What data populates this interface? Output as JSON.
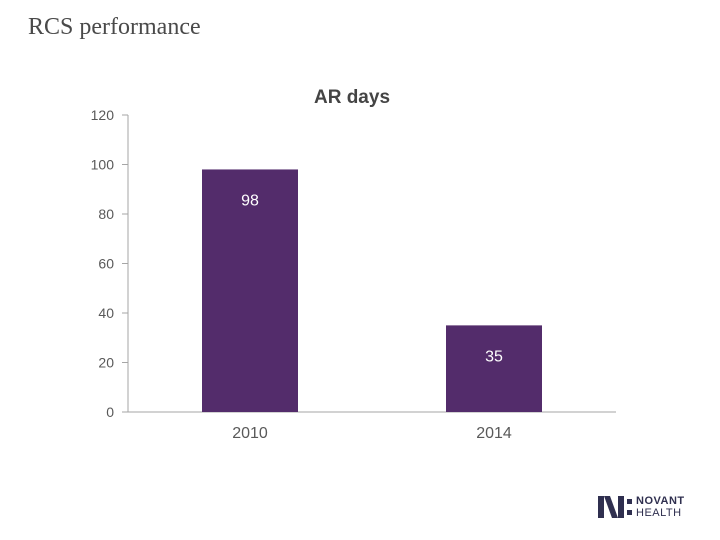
{
  "slide": {
    "title": "RCS performance"
  },
  "chart_data": {
    "type": "bar",
    "title": "AR days",
    "categories": [
      "2010",
      "2014"
    ],
    "values": [
      98,
      35
    ],
    "data_labels": [
      "98",
      "35"
    ],
    "ylim": [
      0,
      120
    ],
    "yticks": [
      0,
      20,
      40,
      60,
      80,
      100,
      120
    ],
    "xlabel": "",
    "ylabel": "",
    "grid": false,
    "legend": "none",
    "bar_color": "#532c6b",
    "data_label_color": "#ffffff"
  },
  "logo": {
    "line1": "NOVANT",
    "line2": "HEALTH",
    "color": "#2f2f4f",
    "icon": "novant-n-logo-icon"
  }
}
